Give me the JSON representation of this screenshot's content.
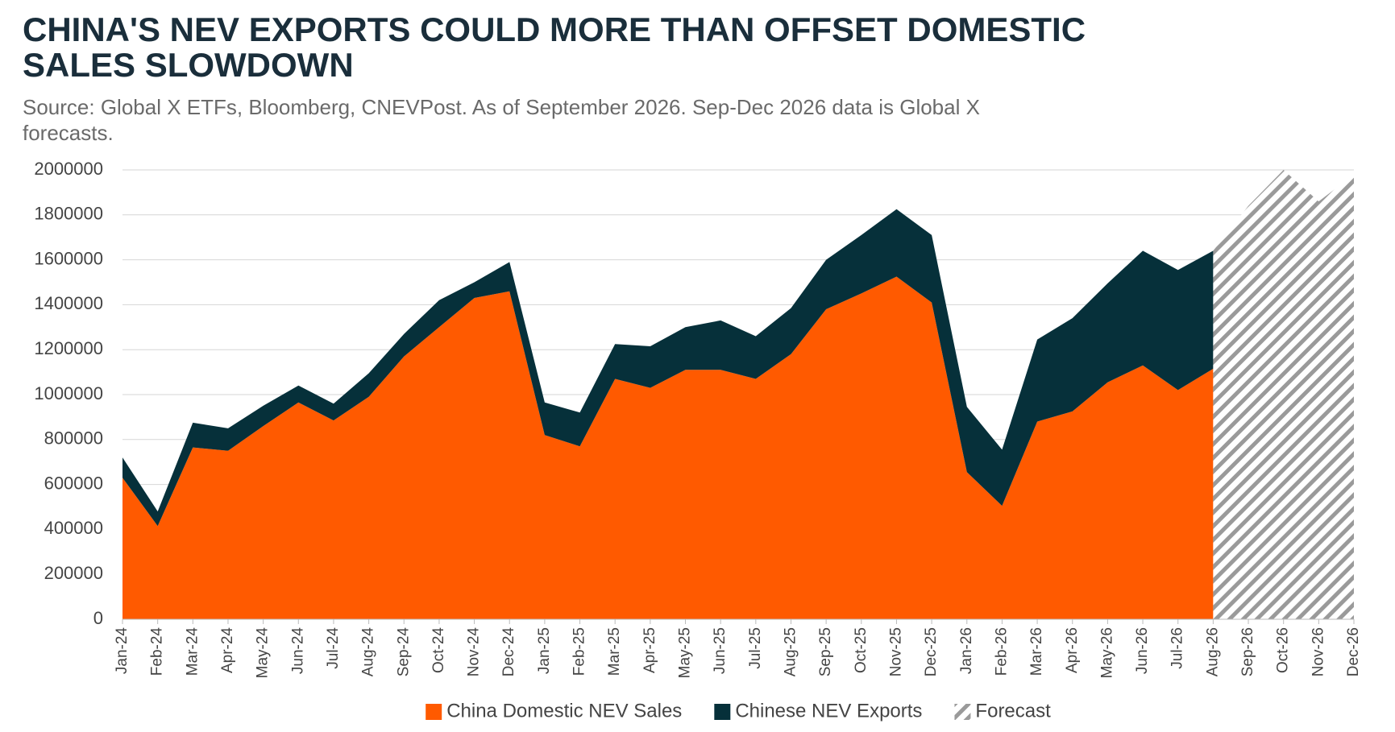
{
  "chart_data": {
    "type": "stacked_area",
    "title": "CHINA'S NEV EXPORTS COULD MORE THAN OFFSET DOMESTIC SALES SLOWDOWN",
    "subtitle": "Source: Global X ETFs, Bloomberg, CNEVPost. As of September 2026. Sep-Dec 2026 data is Global X forecasts.",
    "categories": [
      "Jan-24",
      "Feb-24",
      "Mar-24",
      "Apr-24",
      "May-24",
      "Jun-24",
      "Jul-24",
      "Aug-24",
      "Sep-24",
      "Oct-24",
      "Nov-24",
      "Dec-24",
      "Jan-25",
      "Feb-25",
      "Mar-25",
      "Apr-25",
      "May-25",
      "Jun-25",
      "Jul-25",
      "Aug-25",
      "Sep-25",
      "Oct-25",
      "Nov-25",
      "Dec-25",
      "Jan-26",
      "Feb-26",
      "Mar-26",
      "Apr-26",
      "May-26",
      "Jun-26",
      "Jul-26",
      "Aug-26",
      "Sep-26",
      "Oct-26",
      "Nov-26",
      "Dec-26"
    ],
    "series": [
      {
        "name": "China Domestic NEV Sales",
        "color": "#ff5a00",
        "stack": true,
        "values": [
          630000,
          415000,
          765000,
          750000,
          860000,
          965000,
          885000,
          990000,
          1170000,
          1300000,
          1430000,
          1460000,
          820000,
          770000,
          1070000,
          1030000,
          1110000,
          1110000,
          1070000,
          1180000,
          1380000,
          1450000,
          1525000,
          1410000,
          655000,
          505000,
          880000,
          925000,
          1055000,
          1130000,
          1020000,
          1115000,
          null,
          null,
          null,
          null
        ]
      },
      {
        "name": "Chinese NEV Exports",
        "color": "#06303a",
        "stack": true,
        "values": [
          90000,
          65000,
          110000,
          100000,
          90000,
          75000,
          75000,
          105000,
          100000,
          120000,
          70000,
          130000,
          145000,
          150000,
          155000,
          185000,
          190000,
          220000,
          190000,
          205000,
          220000,
          260000,
          300000,
          300000,
          290000,
          250000,
          365000,
          415000,
          440000,
          510000,
          535000,
          525000,
          null,
          null,
          null,
          null
        ]
      },
      {
        "name": "Forecast",
        "color": "#9a9a9a",
        "stack": false,
        "hatched": true,
        "values": [
          null,
          null,
          null,
          null,
          null,
          null,
          null,
          null,
          null,
          null,
          null,
          null,
          null,
          null,
          null,
          null,
          null,
          null,
          null,
          null,
          null,
          null,
          null,
          null,
          null,
          null,
          null,
          null,
          null,
          null,
          null,
          1640000,
          1840000,
          2000000,
          1860000,
          1980000
        ]
      }
    ],
    "ylim": [
      0,
      2000000
    ],
    "yticks": [
      0,
      200000,
      400000,
      600000,
      800000,
      1000000,
      1200000,
      1400000,
      1600000,
      1800000,
      2000000
    ],
    "grid": true
  }
}
